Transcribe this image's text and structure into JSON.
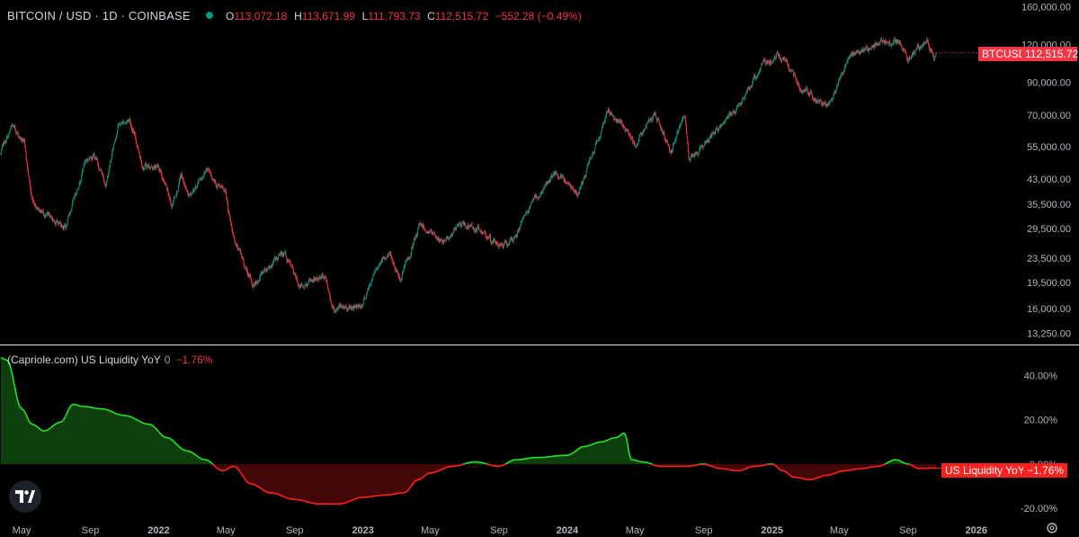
{
  "header": {
    "symbol_title": "BITCOIN / USD · 1D · COINBASE",
    "open_label": "O",
    "open_value": "113,072.18",
    "high_label": "H",
    "high_value": "113,671.99",
    "low_label": "L",
    "low_value": "111,793.73",
    "close_label": "C",
    "close_value": "112,515.72",
    "change": "−552.28 (−0.49%)"
  },
  "price_badge": {
    "ticker": "BTCUSD",
    "price": "112,515.72"
  },
  "indicator": {
    "name": "(Capriole.com) US Liquidity YoY",
    "param": "0",
    "value": "−1.76%",
    "badge_label": "US Liquidity YoY",
    "badge_value": "−1.76%"
  },
  "colors": {
    "up": "#089981",
    "down": "#f23645",
    "liq_pos": "#22e32a",
    "liq_neg": "#ff1f1f",
    "badge": "#f23645",
    "grid_text": "#b2b5be"
  },
  "icons": {
    "logo": "tradingview-logo-icon",
    "settings": "gear-icon",
    "status_dot": "market-status-dot-icon"
  },
  "chart_data": [
    {
      "type": "candlestick",
      "title": "BITCOIN / USD · 1D · COINBASE",
      "yscale": "log",
      "ylim": [
        12500,
        165000
      ],
      "y_ticks": [
        {
          "v": 160000,
          "label": "160,000.00"
        },
        {
          "v": 120000,
          "label": "120,000.00"
        },
        {
          "v": 90000,
          "label": "90,000.00"
        },
        {
          "v": 70000,
          "label": "70,000.00"
        },
        {
          "v": 55000,
          "label": "55,000.00"
        },
        {
          "v": 43000,
          "label": "43,000.00"
        },
        {
          "v": 35500,
          "label": "35,500.00"
        },
        {
          "v": 29500,
          "label": "29,500.00"
        },
        {
          "v": 23500,
          "label": "23,500.00"
        },
        {
          "v": 19500,
          "label": "19,500.00"
        },
        {
          "v": 16000,
          "label": "16,000.00"
        },
        {
          "v": 13250,
          "label": "13,250.00"
        }
      ],
      "x_ticks": [
        "May",
        "Sep",
        "2022",
        "May",
        "Sep",
        "2023",
        "May",
        "Sep",
        "2024",
        "May",
        "Sep",
        "2025",
        "May",
        "Sep",
        "2026"
      ],
      "x_start": "2021-03-25",
      "price_path": [
        [
          "2021-03-25",
          52000
        ],
        [
          "2021-04-14",
          63500
        ],
        [
          "2021-05-05",
          57000
        ],
        [
          "2021-05-19",
          37000
        ],
        [
          "2021-06-22",
          31500
        ],
        [
          "2021-07-20",
          30000
        ],
        [
          "2021-08-22",
          49500
        ],
        [
          "2021-09-07",
          52000
        ],
        [
          "2021-09-29",
          41500
        ],
        [
          "2021-10-20",
          65000
        ],
        [
          "2021-11-10",
          68000
        ],
        [
          "2021-12-04",
          48000
        ],
        [
          "2022-01-01",
          47000
        ],
        [
          "2022-01-24",
          35000
        ],
        [
          "2022-02-10",
          44000
        ],
        [
          "2022-02-24",
          37000
        ],
        [
          "2022-03-29",
          47500
        ],
        [
          "2022-04-30",
          38000
        ],
        [
          "2022-05-12",
          28500
        ],
        [
          "2022-06-18",
          18800
        ],
        [
          "2022-07-08",
          21500
        ],
        [
          "2022-08-14",
          24500
        ],
        [
          "2022-09-07",
          19000
        ],
        [
          "2022-10-25",
          20500
        ],
        [
          "2022-11-09",
          16000
        ],
        [
          "2022-12-30",
          16500
        ],
        [
          "2023-01-31",
          23000
        ],
        [
          "2023-02-16",
          24500
        ],
        [
          "2023-03-10",
          20000
        ],
        [
          "2023-04-14",
          30500
        ],
        [
          "2023-05-25",
          26500
        ],
        [
          "2023-06-23",
          30500
        ],
        [
          "2023-08-16",
          28000
        ],
        [
          "2023-08-17",
          26000
        ],
        [
          "2023-09-26",
          26300
        ],
        [
          "2023-10-24",
          34500
        ],
        [
          "2023-12-08",
          44000
        ],
        [
          "2024-01-23",
          39500
        ],
        [
          "2024-03-14",
          73000
        ],
        [
          "2024-05-01",
          57000
        ],
        [
          "2024-06-06",
          71000
        ],
        [
          "2024-07-05",
          54000
        ],
        [
          "2024-07-29",
          69000
        ],
        [
          "2024-08-05",
          50000
        ],
        [
          "2024-10-29",
          72000
        ],
        [
          "2024-12-17",
          106000
        ],
        [
          "2025-01-20",
          109000
        ],
        [
          "2025-02-26",
          84000
        ],
        [
          "2025-04-08",
          76000
        ],
        [
          "2025-05-22",
          111000
        ],
        [
          "2025-07-14",
          122000
        ],
        [
          "2025-08-13",
          124000
        ],
        [
          "2025-09-01",
          108000
        ],
        [
          "2025-10-06",
          125000
        ],
        [
          "2025-10-17",
          108000
        ],
        [
          "2025-10-21",
          112515.72
        ]
      ]
    },
    {
      "type": "area",
      "title": "(Capriole.com) US Liquidity YoY",
      "ylim": [
        -24,
        52
      ],
      "y_ticks": [
        {
          "v": 40,
          "label": "40.00%"
        },
        {
          "v": 20,
          "label": "20.00%"
        },
        {
          "v": 0,
          "label": "0.00%"
        },
        {
          "v": -20,
          "label": "-20.00%"
        }
      ],
      "series": [
        {
          "x": [
            "2021-03-25",
            "2021-04-05",
            "2021-05-01",
            "2021-05-20",
            "2021-06-10",
            "2021-07-10",
            "2021-08-01",
            "2021-08-20",
            "2021-09-20",
            "2021-11-01",
            "2021-12-15",
            "2022-01-15",
            "2022-02-20",
            "2022-03-25",
            "2022-04-25",
            "2022-05-15",
            "2022-06-15",
            "2022-07-20",
            "2022-09-01",
            "2022-10-15",
            "2022-11-20",
            "2023-01-01",
            "2023-02-10",
            "2023-03-15",
            "2023-04-10",
            "2023-05-01",
            "2023-06-10",
            "2023-07-20",
            "2023-09-01",
            "2023-10-01",
            "2023-11-10",
            "2024-01-01",
            "2024-02-01",
            "2024-03-01",
            "2024-03-28",
            "2024-04-12",
            "2024-04-25",
            "2024-05-15",
            "2024-06-15",
            "2024-08-01",
            "2024-09-01",
            "2024-10-01",
            "2024-11-01",
            "2024-12-01",
            "2025-01-01",
            "2025-01-20",
            "2025-02-10",
            "2025-03-10",
            "2025-04-10",
            "2025-05-10",
            "2025-06-10",
            "2025-07-10",
            "2025-08-10",
            "2025-09-01",
            "2025-09-20",
            "2025-10-21"
          ],
          "values": [
            48,
            47,
            25,
            18,
            15,
            19,
            27,
            26,
            25,
            22,
            18,
            12,
            6,
            2,
            -3,
            -1,
            -9,
            -13,
            -16,
            -18,
            -18,
            -15,
            -14,
            -13,
            -7,
            -4,
            -1,
            1,
            -1,
            2,
            3,
            4,
            8,
            10,
            12,
            14,
            2,
            1,
            -1,
            -1,
            0,
            -2,
            -3,
            -1,
            0,
            -3,
            -6,
            -7,
            -5,
            -3,
            -2,
            -1,
            2,
            0,
            -2,
            -1.76
          ]
        }
      ]
    }
  ]
}
